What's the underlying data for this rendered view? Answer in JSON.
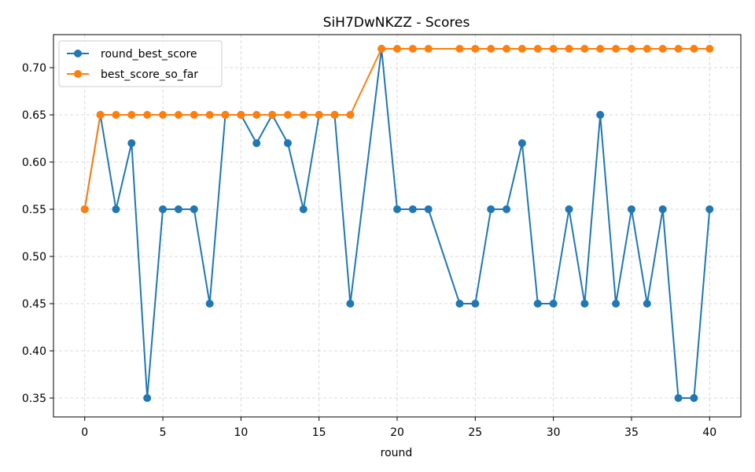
{
  "chart_data": {
    "type": "line",
    "title": "SiH7DwNKZZ - Scores",
    "xlabel": "round",
    "ylabel": "",
    "xlim": [
      -2,
      42
    ],
    "ylim": [
      0.33,
      0.735
    ],
    "xticks": [
      0,
      5,
      10,
      15,
      20,
      25,
      30,
      35,
      40
    ],
    "yticks": [
      0.35,
      0.4,
      0.45,
      0.5,
      0.55,
      0.6,
      0.65,
      0.7
    ],
    "grid": true,
    "legend_position": "top-left",
    "series": [
      {
        "name": "round_best_score",
        "color": "#1f77b4",
        "x": [
          0,
          1,
          2,
          3,
          4,
          5,
          6,
          7,
          8,
          9,
          10,
          11,
          12,
          13,
          14,
          15,
          16,
          17,
          19,
          20,
          21,
          22,
          24,
          25,
          26,
          27,
          28,
          29,
          30,
          31,
          32,
          33,
          34,
          35,
          36,
          37,
          38,
          39,
          40
        ],
        "y": [
          0.55,
          0.65,
          0.55,
          0.62,
          0.35,
          0.55,
          0.55,
          0.55,
          0.45,
          0.65,
          0.65,
          0.62,
          0.65,
          0.62,
          0.55,
          0.65,
          0.65,
          0.45,
          0.72,
          0.55,
          0.55,
          0.55,
          0.45,
          0.45,
          0.55,
          0.55,
          0.62,
          0.45,
          0.45,
          0.55,
          0.45,
          0.65,
          0.45,
          0.55,
          0.45,
          0.55,
          0.35,
          0.35,
          0.55
        ]
      },
      {
        "name": "best_score_so_far",
        "color": "#ff7f0e",
        "x": [
          0,
          1,
          2,
          3,
          4,
          5,
          6,
          7,
          8,
          9,
          10,
          11,
          12,
          13,
          14,
          15,
          16,
          17,
          19,
          20,
          21,
          22,
          24,
          25,
          26,
          27,
          28,
          29,
          30,
          31,
          32,
          33,
          34,
          35,
          36,
          37,
          38,
          39,
          40
        ],
        "y": [
          0.55,
          0.65,
          0.65,
          0.65,
          0.65,
          0.65,
          0.65,
          0.65,
          0.65,
          0.65,
          0.65,
          0.65,
          0.65,
          0.65,
          0.65,
          0.65,
          0.65,
          0.65,
          0.72,
          0.72,
          0.72,
          0.72,
          0.72,
          0.72,
          0.72,
          0.72,
          0.72,
          0.72,
          0.72,
          0.72,
          0.72,
          0.72,
          0.72,
          0.72,
          0.72,
          0.72,
          0.72,
          0.72,
          0.72
        ]
      }
    ]
  }
}
